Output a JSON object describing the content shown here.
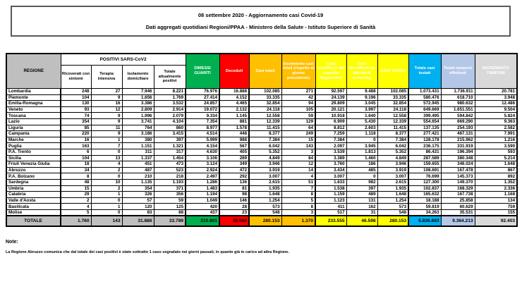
{
  "title": {
    "line1": "08 settembre 2020 - Aggiornamento casi Covid-19",
    "line2": "Dati aggregati quotidiani Regioni/PPAA - Ministero della Salute - Istituto Superiore di Sanità"
  },
  "colors": {
    "green": "#00B050",
    "red": "#FF0000",
    "orange": "#FFC000",
    "yellow": "#FFFF00",
    "blue": "#00B0F0",
    "light_blue": "#B4C7E7",
    "gray": "#BFBFBF",
    "light_gray": "#D9D9D9"
  },
  "table": {
    "group_header": "POSITIVI SARS-CoV2",
    "headers": {
      "regione": "REGIONE",
      "ricoverati": "Ricoverati con sintomi",
      "terapia": "Terapia intensiva",
      "isolamento": "Isolamento domiciliare",
      "attualmente_positivi": "Totale attualmente positivi",
      "dimessi_guariti": "DIMESSI GUARITI",
      "deceduti": "Deceduti",
      "casi_totali": "Casi totali",
      "incremento_casi": "Incremento casi totali (rispetto al giorno precedente)",
      "sospetto_diagnostico": "Casi identificati dal sospetto diagnostico",
      "screening": "Casi identificati da attività di screening",
      "casi_totali_2": "CASI TOTALI",
      "casi_testati": "Totale casi testati",
      "tamponi": "Totale tamponi effettuati",
      "incremento_tamponi": "INCREMENTO TAMPONI"
    },
    "rows": [
      [
        "Lombardia",
        "248",
        "27",
        "7.946",
        "8.221",
        "76.976",
        "16.888",
        "102.085",
        "271",
        "92.597",
        "9.488",
        "102.085",
        "1.073.431",
        "1.736.911",
        "20.781"
      ],
      [
        "Piemonte",
        "104",
        "9",
        "1.656",
        "1.769",
        "27.414",
        "4.152",
        "33.335",
        "42",
        "24.139",
        "9.196",
        "33.335",
        "580.476",
        "618.710",
        "3.948"
      ],
      [
        "Emilia-Romagna",
        "130",
        "16",
        "3.386",
        "3.532",
        "24.857",
        "4.465",
        "32.854",
        "94",
        "29.809",
        "3.045",
        "32.854",
        "572.945",
        "980.632",
        "12.486"
      ],
      [
        "Veneto",
        "93",
        "12",
        "2.809",
        "2.914",
        "19.072",
        "2.132",
        "24.118",
        "105",
        "20.121",
        "3.997",
        "24.118",
        "649.669",
        "1.651.551",
        "9.504"
      ],
      [
        "Toscana",
        "74",
        "9",
        "1.996",
        "2.079",
        "9.334",
        "1.145",
        "12.558",
        "59",
        "10.918",
        "1.640",
        "12.558",
        "399.495",
        "594.842",
        "5.824"
      ],
      [
        "Lazio",
        "354",
        "9",
        "3.741",
        "4.104",
        "7.354",
        "881",
        "12.339",
        "129",
        "6.909",
        "5.430",
        "12.339",
        "554.654",
        "669.290",
        "9.363"
      ],
      [
        "Liguria",
        "85",
        "11",
        "764",
        "860",
        "8.977",
        "1.578",
        "11.415",
        "64",
        "8.812",
        "2.603",
        "11.415",
        "137.135",
        "254.193",
        "2.582"
      ],
      [
        "Campania",
        "220",
        "9",
        "3.186",
        "3.415",
        "4.514",
        "448",
        "8.377",
        "249",
        "7.259",
        "1.118",
        "8.377",
        "277.421",
        "467.131",
        "7.991"
      ],
      [
        "Marche",
        "16",
        "1",
        "380",
        "397",
        "5.999",
        "988",
        "7.384",
        "15",
        "7.384",
        "0",
        "7.384",
        "128.178",
        "215.962",
        "1.216"
      ],
      [
        "Puglia",
        "163",
        "7",
        "1.151",
        "1.321",
        "4.154",
        "567",
        "6.042",
        "143",
        "2.097",
        "3.945",
        "6.042",
        "236.175",
        "331.919",
        "3.590"
      ],
      [
        "P.A. Trento",
        "6",
        "0",
        "311",
        "317",
        "4.630",
        "405",
        "5.352",
        "3",
        "3.539",
        "1.813",
        "5.352",
        "86.431",
        "196.394",
        "593"
      ],
      [
        "Sicilia",
        "104",
        "13",
        "1.337",
        "1.454",
        "3.106",
        "289",
        "4.849",
        "84",
        "3.389",
        "1.460",
        "4.849",
        "287.589",
        "380.348",
        "5.214"
      ],
      [
        "Friuli Venezia Giulia",
        "18",
        "4",
        "451",
        "473",
        "3.124",
        "349",
        "3.946",
        "12",
        "3.760",
        "186",
        "3.946",
        "159.655",
        "346.024",
        "1.648"
      ],
      [
        "Abruzzo",
        "34",
        "2",
        "487",
        "523",
        "2.924",
        "472",
        "3.919",
        "14",
        "3.434",
        "485",
        "3.919",
        "108.691",
        "167.478",
        "867"
      ],
      [
        "P.A. Bolzano",
        "8",
        "0",
        "210",
        "218",
        "2.497",
        "292",
        "3.007",
        "4",
        "3.007",
        "0",
        "3.007",
        "76.699",
        "145.373",
        "892"
      ],
      [
        "Sardegna",
        "48",
        "10",
        "1.135",
        "1.193",
        "1.286",
        "136",
        "2.615",
        "51",
        "1.633",
        "982",
        "2.615",
        "127.300",
        "149.370",
        "1.352"
      ],
      [
        "Umbria",
        "15",
        "2",
        "354",
        "371",
        "1.483",
        "81",
        "1.935",
        "7",
        "1.538",
        "397",
        "1.935",
        "102.837",
        "168.329",
        "2.336"
      ],
      [
        "Calabria",
        "29",
        "1",
        "326",
        "356",
        "1.194",
        "98",
        "1.648",
        "8",
        "1.159",
        "489",
        "1.648",
        "165.632",
        "167.738",
        "1.168"
      ],
      [
        "Valle d'Aosta",
        "2",
        "0",
        "57",
        "59",
        "1.049",
        "146",
        "1.254",
        "5",
        "1.123",
        "131",
        "1.254",
        "18.188",
        "25.858",
        "134"
      ],
      [
        "Basilicata",
        "4",
        "1",
        "120",
        "125",
        "420",
        "28",
        "573",
        "8",
        "411",
        "162",
        "573",
        "59.819",
        "60.629",
        "759"
      ],
      [
        "Molise",
        "5",
        "0",
        "83",
        "88",
        "437",
        "23",
        "548",
        "3",
        "517",
        "31",
        "548",
        "34.263",
        "35.531",
        "155"
      ]
    ],
    "total": [
      "TOTALE",
      "1.760",
      "143",
      "31.886",
      "33.789",
      "210.801",
      "35.563",
      "280.153",
      "1.370",
      "233.555",
      "46.598",
      "280.153",
      "5.836.683",
      "9.364.213",
      "92.403"
    ]
  },
  "notes": {
    "heading": "Note:",
    "text": "La Regione Abruzzo comunica che dal totale dei casi positivi è stato sottratto 1 caso segnalato nei giorni passati, in quanto già in carico ad altra Regione."
  }
}
